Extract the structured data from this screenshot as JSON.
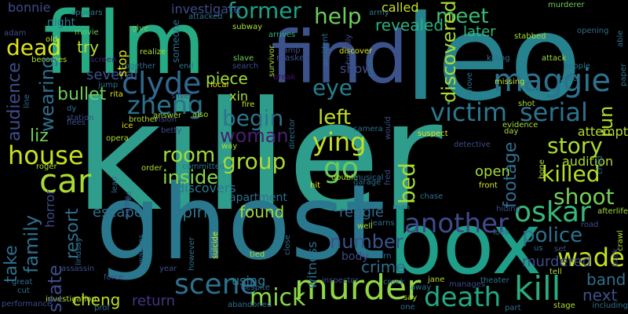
{
  "background": "#000000",
  "words": [
    {
      "text": "killer",
      "color": "#2f9d8c"
    },
    {
      "text": "ghost",
      "color": "#2a788e"
    },
    {
      "text": "leo",
      "color": "#26828e"
    },
    {
      "text": "box",
      "color": "#1f9e89"
    },
    {
      "text": "film",
      "color": "#26aa83"
    },
    {
      "text": "find",
      "color": "#3b528b"
    },
    {
      "text": "maggie",
      "color": "#2c728e"
    },
    {
      "text": "car",
      "color": "#a8db34"
    },
    {
      "text": "murder",
      "color": "#8fd744"
    },
    {
      "text": "death",
      "color": "#22a884"
    },
    {
      "text": "kill",
      "color": "#28ae80"
    },
    {
      "text": "clyde",
      "color": "#31688e"
    },
    {
      "text": "another",
      "color": "#3e4a89"
    },
    {
      "text": "zheng",
      "color": "#2c718e"
    },
    {
      "text": "house",
      "color": "#c8e020"
    },
    {
      "text": "victim",
      "color": "#2a788e"
    },
    {
      "text": "oskar",
      "color": "#37b878"
    },
    {
      "text": "ying",
      "color": "#c3df22"
    },
    {
      "text": "serial",
      "color": "#2c728e"
    },
    {
      "text": "scene",
      "color": "#2e6f8e"
    },
    {
      "text": "go",
      "color": "#69cd5b"
    },
    {
      "text": "former",
      "color": "#1fa088"
    },
    {
      "text": "help",
      "color": "#6ccd5a"
    },
    {
      "text": "dead",
      "color": "#dde318"
    },
    {
      "text": "left",
      "color": "#c0df25"
    },
    {
      "text": "eye",
      "color": "#277f8e"
    },
    {
      "text": "group",
      "color": "#a8db34"
    },
    {
      "text": "room",
      "color": "#a2da37"
    },
    {
      "text": "begin",
      "color": "#2b758e"
    },
    {
      "text": "story",
      "color": "#aadc32"
    },
    {
      "text": "killed",
      "color": "#b5de2b"
    },
    {
      "text": "shoot",
      "color": "#75d054"
    },
    {
      "text": "wade",
      "color": "#c5e021"
    },
    {
      "text": "police",
      "color": "#2c728e"
    },
    {
      "text": "mick",
      "color": "#8bd646"
    },
    {
      "text": "woman",
      "color": "#481f70"
    },
    {
      "text": "spirit",
      "color": "#2a788e"
    },
    {
      "text": "found",
      "color": "#a0da39"
    },
    {
      "text": "inside",
      "color": "#8bd646"
    },
    {
      "text": "liz",
      "color": "#6ece58"
    },
    {
      "text": "number",
      "color": "#3b528b"
    },
    {
      "text": "band",
      "color": "#2c718e"
    },
    {
      "text": "next",
      "color": "#3b528b"
    },
    {
      "text": "meet",
      "color": "#3aba76"
    },
    {
      "text": "later",
      "color": "#35b779"
    },
    {
      "text": "called",
      "color": "#c5e021"
    },
    {
      "text": "revealed",
      "color": "#2ab07f"
    },
    {
      "text": "several",
      "color": "#3b528b"
    },
    {
      "text": "try",
      "color": "#b8de29"
    },
    {
      "text": "bullet",
      "color": "#6ece58"
    },
    {
      "text": "piece",
      "color": "#a0da39"
    },
    {
      "text": "xin",
      "color": "#addc30"
    },
    {
      "text": "show",
      "color": "#3e4c8a"
    },
    {
      "text": "open",
      "color": "#a5db36"
    },
    {
      "text": "audition",
      "color": "#addc30"
    },
    {
      "text": "attempt",
      "color": "#b5de2b"
    },
    {
      "text": "escape",
      "color": "#2e6f8e"
    },
    {
      "text": "cheng",
      "color": "#c0df25"
    },
    {
      "text": "return",
      "color": "#46337f"
    },
    {
      "text": "using",
      "color": "#2a788e"
    },
    {
      "text": "reggie",
      "color": "#31688e"
    },
    {
      "text": "crime",
      "color": "#2c718e"
    },
    {
      "text": "body",
      "color": "#3e4989"
    },
    {
      "text": "murdered",
      "color": "#3e4c8a"
    },
    {
      "text": "discovers",
      "color": "#2a788e"
    },
    {
      "text": "apartment",
      "color": "#2c718e"
    },
    {
      "text": "bonnie",
      "color": "#3e4c8a"
    },
    {
      "text": "night",
      "color": "#2a788e"
    },
    {
      "text": "appears",
      "color": "#2a788e"
    },
    {
      "text": "investigate",
      "color": "#3e4c8a"
    },
    {
      "text": "attacked",
      "color": "#2e6f8e"
    },
    {
      "text": "movie",
      "color": "#65cb5e"
    },
    {
      "text": "old",
      "color": "#c5e021"
    },
    {
      "text": "adam",
      "color": "#3e4c8a"
    },
    {
      "text": "give",
      "color": "#6ece58"
    },
    {
      "text": "subway",
      "color": "#addc30"
    },
    {
      "text": "murderer",
      "color": "#6ece58"
    },
    {
      "text": "opening",
      "color": "#2e6f8e"
    },
    {
      "text": "stabbed",
      "color": "#a5db36"
    },
    {
      "text": "army",
      "color": "#2a788e"
    },
    {
      "text": "discover",
      "color": "#dde318"
    },
    {
      "text": "arrives",
      "color": "#2ab07f"
    },
    {
      "text": "camp",
      "color": "#3e4c8a"
    },
    {
      "text": "masked",
      "color": "#3e4c8a"
    },
    {
      "text": "break",
      "color": "#471063"
    },
    {
      "text": "search",
      "color": "#3e4c8a"
    },
    {
      "text": "end",
      "color": "#2a788e"
    },
    {
      "text": "slave",
      "color": "#6ece58"
    },
    {
      "text": "killing",
      "color": "#2e6f8e"
    },
    {
      "text": "attack",
      "color": "#a2da37"
    },
    {
      "text": "people",
      "color": "#2e6f8e"
    },
    {
      "text": "missing",
      "color": "#c5e021"
    },
    {
      "text": "tribe",
      "color": "#2e6f8e"
    },
    {
      "text": "becomes",
      "color": "#addc30"
    },
    {
      "text": "screen",
      "color": "#482475"
    },
    {
      "text": "together",
      "color": "#2e6f8e"
    },
    {
      "text": "realize",
      "color": "#addc30"
    },
    {
      "text": "jump",
      "color": "#2e6f8e"
    },
    {
      "text": "rita",
      "color": "#dde318"
    },
    {
      "text": "silver",
      "color": "#3e4c8a"
    },
    {
      "text": "dy",
      "color": "#2e6f8e"
    },
    {
      "text": "station",
      "color": "#3e4c8a"
    },
    {
      "text": "flees",
      "color": "#3e4c8a"
    },
    {
      "text": "ice",
      "color": "#dde318"
    },
    {
      "text": "vision",
      "color": "#3e4c8a"
    },
    {
      "text": "brother",
      "color": "#addc30"
    },
    {
      "text": "also",
      "color": "#addc30"
    },
    {
      "text": "fire",
      "color": "#c5e021"
    },
    {
      "text": "local",
      "color": "#dde318"
    },
    {
      "text": "shot",
      "color": "#addc30"
    },
    {
      "text": "evidence",
      "color": "#a5db36"
    },
    {
      "text": "day",
      "color": "#a5db36"
    },
    {
      "text": "suspect",
      "color": "#dde318"
    },
    {
      "text": "detective",
      "color": "#3e4c8a"
    },
    {
      "text": "camera",
      "color": "#2e6f8e"
    },
    {
      "text": "betty",
      "color": "#3e4c8a"
    },
    {
      "text": "answer",
      "color": "#a5db36"
    },
    {
      "text": "opera",
      "color": "#addc30"
    },
    {
      "text": "way",
      "color": "#addc30"
    },
    {
      "text": "roger",
      "color": "#addc30"
    },
    {
      "text": "order",
      "color": "#addc30"
    },
    {
      "text": "committed",
      "color": "#2e6f8e"
    },
    {
      "text": "double",
      "color": "#addc30"
    },
    {
      "text": "musical",
      "color": "#2e6f8e"
    },
    {
      "text": "garage",
      "color": "#2e6f8e"
    },
    {
      "text": "hit",
      "color": "#dde318"
    },
    {
      "text": "front",
      "color": "#dde318"
    },
    {
      "text": "chase",
      "color": "#2e6f8e"
    },
    {
      "text": "hiding",
      "color": "#3e4c8a"
    },
    {
      "text": "afterlife",
      "color": "#a5db36"
    },
    {
      "text": "man",
      "color": "#2e6f8e"
    },
    {
      "text": "learns",
      "color": "#2e6f8e"
    },
    {
      "text": "well",
      "color": "#addc30"
    },
    {
      "text": "look",
      "color": "#2e6f8e"
    },
    {
      "text": "road",
      "color": "#3e4c8a"
    },
    {
      "text": "us",
      "color": "#2e6f8e"
    },
    {
      "text": "set",
      "color": "#3e4c8a"
    },
    {
      "text": "assassin",
      "color": "#3e4c8a"
    },
    {
      "text": "force",
      "color": "#3e4c8a"
    },
    {
      "text": "great",
      "color": "#2e6f8e"
    },
    {
      "text": "cut",
      "color": "#2e6f8e"
    },
    {
      "text": "investigation",
      "color": "#addc30"
    },
    {
      "text": "performance",
      "color": "#3e4c8a"
    },
    {
      "text": "prof",
      "color": "#2e6f8e"
    },
    {
      "text": "year",
      "color": "#3e4c8a"
    },
    {
      "text": "tied",
      "color": "#addc30"
    },
    {
      "text": "despite",
      "color": "#2e6f8e"
    },
    {
      "text": "abandoned",
      "color": "#2e6f8e"
    },
    {
      "text": "inspector",
      "color": "#3e4c8a"
    },
    {
      "text": "turn",
      "color": "#2e6f8e"
    },
    {
      "text": "creek",
      "color": "#2e6f8e"
    },
    {
      "text": "away",
      "color": "#2e6f8e"
    },
    {
      "text": "say",
      "color": "#addc30"
    },
    {
      "text": "one",
      "color": "#2e6f8e"
    },
    {
      "text": "jane",
      "color": "#addc30"
    },
    {
      "text": "manages",
      "color": "#3e4c8a"
    },
    {
      "text": "theater",
      "color": "#2e6f8e"
    },
    {
      "text": "part",
      "color": "#2e6f8e"
    },
    {
      "text": "stage",
      "color": "#addc30"
    },
    {
      "text": "tell",
      "color": "#addc30"
    },
    {
      "text": "including",
      "color": "#2e6f8e"
    },
    {
      "text": "bed",
      "color": "#addc30"
    },
    {
      "text": "run",
      "color": "#addc30"
    },
    {
      "text": "discovered",
      "color": "#addc30"
    },
    {
      "text": "footage",
      "color": "#2e6f8e"
    },
    {
      "text": "audience",
      "color": "#3e4c8a"
    },
    {
      "text": "resort",
      "color": "#2e6f8e"
    },
    {
      "text": "wearing",
      "color": "#2e6f8e"
    },
    {
      "text": "state",
      "color": "#3e4c8a"
    },
    {
      "text": "family",
      "color": "#2e6f8e"
    },
    {
      "text": "take",
      "color": "#2e6f8e"
    },
    {
      "text": "horror",
      "color": "#3e4c8a"
    },
    {
      "text": "witness",
      "color": "#2e6f8e"
    },
    {
      "text": "stop",
      "color": "#dde318"
    },
    {
      "text": "someone",
      "color": "#2e6f8e"
    },
    {
      "text": "accident",
      "color": "#2e6f8e"
    },
    {
      "text": "brutally",
      "color": "#3e4c8a"
    },
    {
      "text": "pass",
      "color": "#2e6f8e"
    },
    {
      "text": "survivor",
      "color": "#addc30"
    },
    {
      "text": "move",
      "color": "#2e6f8e"
    },
    {
      "text": "paper",
      "color": "#2e6f8e"
    },
    {
      "text": "able",
      "color": "#2e6f8e"
    },
    {
      "text": "line",
      "color": "#2e6f8e"
    },
    {
      "text": "would",
      "color": "#3e4c8a"
    },
    {
      "text": "director",
      "color": "#2e6f8e"
    },
    {
      "text": "fred",
      "color": "#3e4c8a"
    },
    {
      "text": "bone",
      "color": "#addc30"
    },
    {
      "text": "child",
      "color": "#2e6f8e"
    },
    {
      "text": "lead",
      "color": "#2e6f8e"
    },
    {
      "text": "flee",
      "color": "#2e6f8e"
    },
    {
      "text": "name",
      "color": "#3e4c8a"
    },
    {
      "text": "lindsay",
      "color": "#2e6f8e"
    },
    {
      "text": "awakens",
      "color": "#2e6f8e"
    },
    {
      "text": "however",
      "color": "#2e6f8e"
    },
    {
      "text": "suicide",
      "color": "#dde318"
    },
    {
      "text": "close",
      "color": "#2e6f8e"
    },
    {
      "text": "back",
      "color": "#3e4c8a"
    },
    {
      "text": "crawl",
      "color": "#addc30"
    }
  ]
}
